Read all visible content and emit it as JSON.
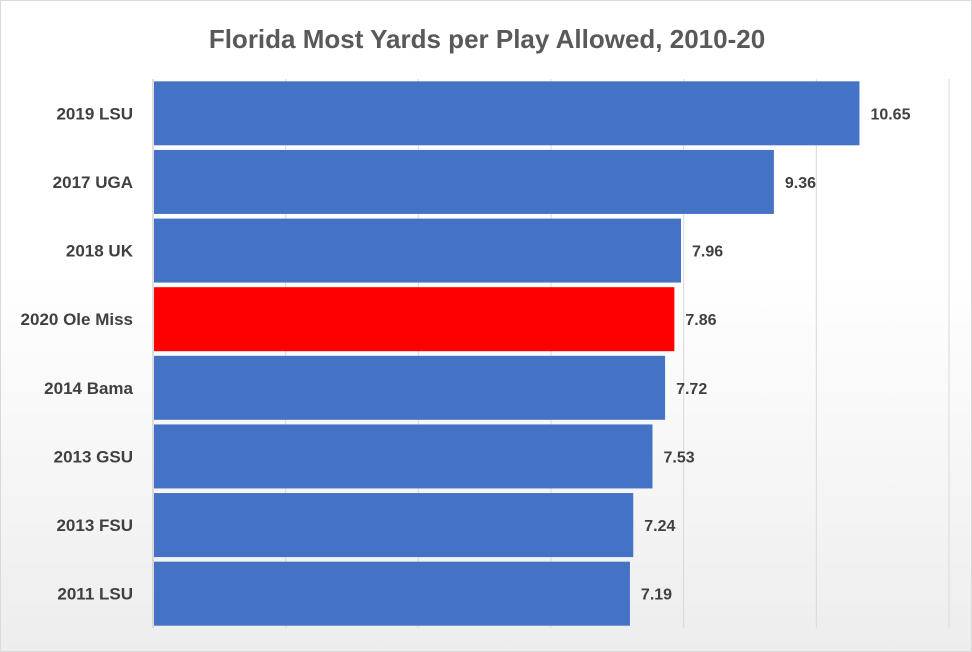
{
  "chart_data": {
    "type": "bar",
    "orientation": "horizontal",
    "title": "Florida Most Yards per Play Allowed, 2010-20",
    "categories": [
      "2019 LSU",
      "2017 UGA",
      "2018 UK",
      "2020 Ole Miss",
      "2014 Bama",
      "2013 GSU",
      "2013 FSU",
      "2011 LSU"
    ],
    "values": [
      10.65,
      9.36,
      7.96,
      7.86,
      7.72,
      7.53,
      7.24,
      7.19
    ],
    "value_labels": [
      "10.65",
      "9.36",
      "7.96",
      "7.86",
      "7.72",
      "7.53",
      "7.24",
      "7.19"
    ],
    "bar_colors": [
      "#4472c4",
      "#4472c4",
      "#4472c4",
      "#ff0000",
      "#4472c4",
      "#4472c4",
      "#4472c4",
      "#4472c4"
    ],
    "xlim": [
      0,
      12
    ],
    "x_gridline_step": 2,
    "grid": true,
    "legend": "none",
    "xlabel": "",
    "ylabel": ""
  }
}
